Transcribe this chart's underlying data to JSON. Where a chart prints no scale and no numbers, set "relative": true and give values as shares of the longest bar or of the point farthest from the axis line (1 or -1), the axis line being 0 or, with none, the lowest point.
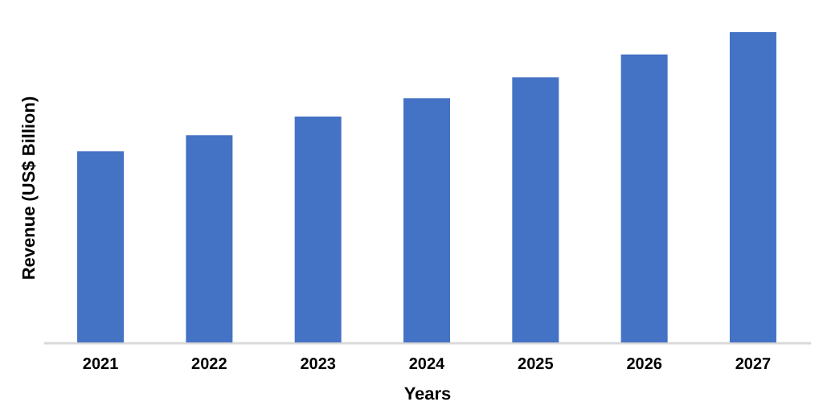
{
  "chart_data": {
    "type": "bar",
    "relative": true,
    "xlabel": "Years",
    "ylabel": "Revenue (US$ Billion)",
    "categories": [
      "2021",
      "2022",
      "2023",
      "2024",
      "2025",
      "2026",
      "2027"
    ],
    "values": [
      0.616,
      0.668,
      0.728,
      0.787,
      0.854,
      0.928,
      1
    ],
    "color": "#4472c4",
    "grid": false
  }
}
